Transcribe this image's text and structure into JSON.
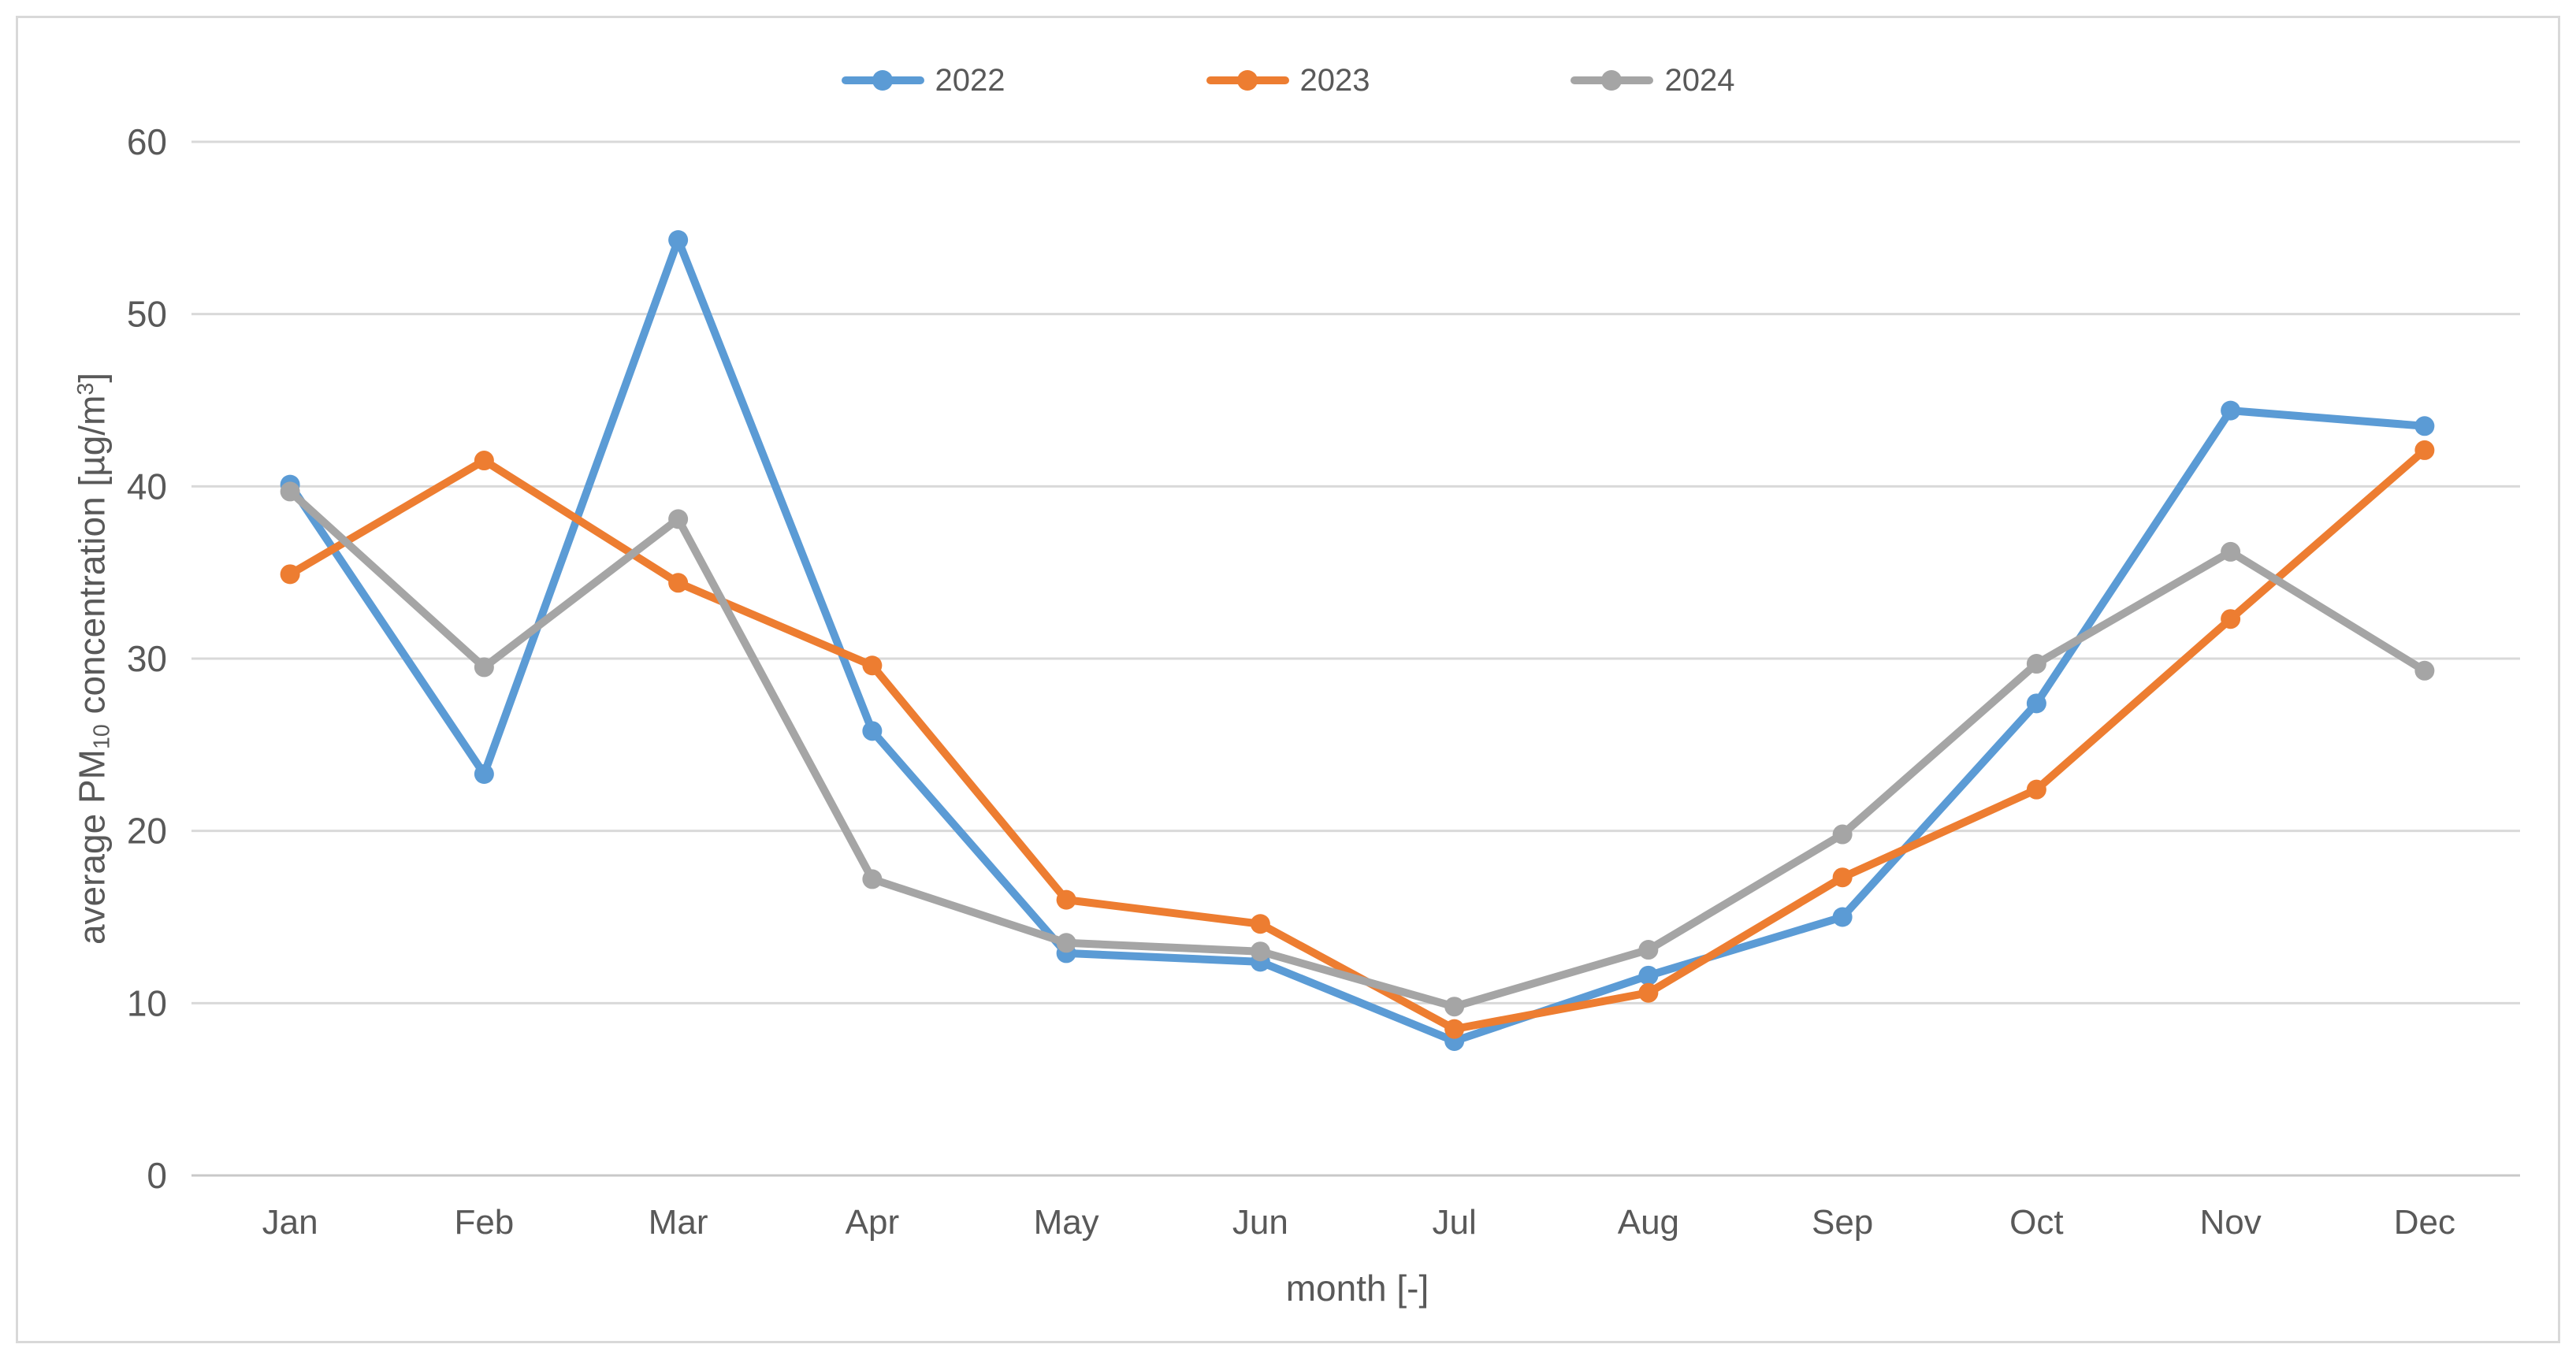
{
  "chart_data": {
    "type": "line",
    "title": "",
    "categories": [
      "Jan",
      "Feb",
      "Mar",
      "Apr",
      "May",
      "Jun",
      "Jul",
      "Aug",
      "Sep",
      "Oct",
      "Nov",
      "Dec"
    ],
    "series": [
      {
        "name": "2022",
        "color": "#5B9BD5",
        "values": [
          40.1,
          23.3,
          54.3,
          25.8,
          12.9,
          12.4,
          7.8,
          11.6,
          15.0,
          27.4,
          44.4,
          43.5
        ]
      },
      {
        "name": "2023",
        "color": "#ED7D31",
        "values": [
          34.9,
          41.5,
          34.4,
          29.6,
          16.0,
          14.6,
          8.5,
          10.6,
          17.3,
          22.4,
          32.3,
          42.1
        ]
      },
      {
        "name": "2024",
        "color": "#A5A5A5",
        "values": [
          39.7,
          29.5,
          38.1,
          17.2,
          13.5,
          13.0,
          9.8,
          13.1,
          19.8,
          29.7,
          36.2,
          29.3
        ]
      }
    ],
    "xlabel": "month [-]",
    "ylabel": "average PM10 concentration [µg/m³]",
    "ylabel_parts": {
      "pre": "average PM",
      "sub": "10",
      "mid": " concentration [µg/m",
      "sup": "3",
      "post": "]"
    },
    "yticks": [
      0,
      10,
      20,
      30,
      40,
      50,
      60
    ],
    "ylim": [
      0,
      60
    ],
    "grid": true,
    "legend_position": "top-center"
  },
  "colors": {
    "background": "#FFFFFF",
    "border": "#D9D9D9",
    "gridline": "#D9D9D9",
    "axis_line": "#C9C9C9",
    "text": "#595959"
  }
}
